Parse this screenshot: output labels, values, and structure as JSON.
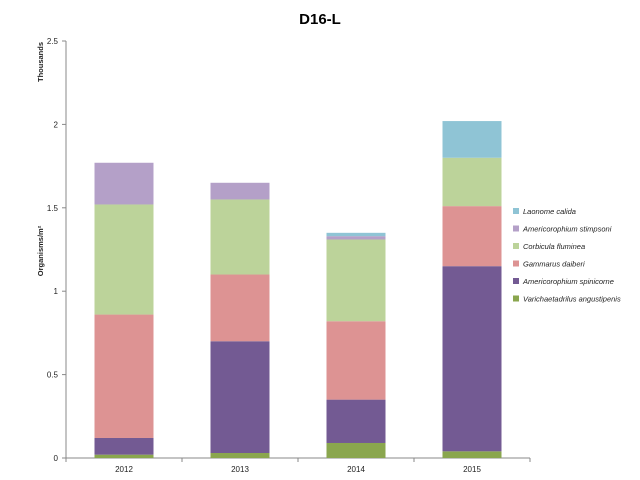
{
  "chart_data": {
    "type": "bar",
    "stacked": true,
    "title": "D16-L",
    "ylabel": "Organisms/m²",
    "y_unit_label": "Thousands",
    "ylim": [
      0,
      2.5
    ],
    "yticks": [
      "0",
      "0.5",
      "1",
      "1.5",
      "2",
      "2.5"
    ],
    "ytick_values": [
      0,
      0.5,
      1,
      1.5,
      2,
      2.5
    ],
    "categories": [
      "2012",
      "2013",
      "2014",
      "2015"
    ],
    "legend_position": "right",
    "grid": false,
    "series": [
      {
        "name": "Varichaetadrilus angustipenis",
        "color": "#8aa64e",
        "values": [
          0.02,
          0.03,
          0.09,
          0.04
        ]
      },
      {
        "name": "Americorophium spinicorne",
        "color": "#735a93",
        "values": [
          0.1,
          0.67,
          0.26,
          1.11
        ]
      },
      {
        "name": "Gammarus daiberi",
        "color": "#dd9393",
        "values": [
          0.74,
          0.4,
          0.47,
          0.36
        ]
      },
      {
        "name": "Corbicula fluminea",
        "color": "#bcd39a",
        "values": [
          0.66,
          0.45,
          0.49,
          0.29
        ]
      },
      {
        "name": "Americorophium stimpsoni",
        "color": "#b4a0c8",
        "values": [
          0.25,
          0.1,
          0.02,
          0.0
        ]
      },
      {
        "name": "Laonome calida",
        "color": "#8fc4d5",
        "values": [
          0.0,
          0.0,
          0.02,
          0.22
        ]
      }
    ]
  }
}
